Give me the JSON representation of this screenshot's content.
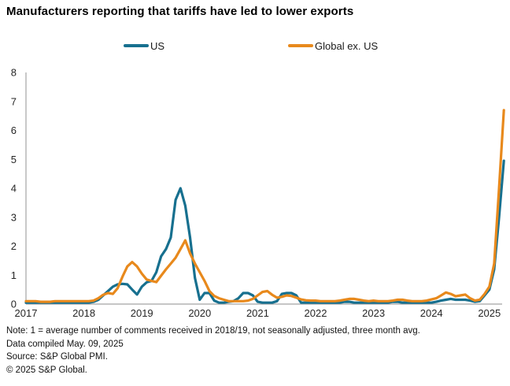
{
  "title": "Manufacturers reporting that tariffs have led to lower exports",
  "legend": [
    {
      "label": "US",
      "color": "#17708F"
    },
    {
      "label": "Global ex. US",
      "color": "#E8891C"
    }
  ],
  "chart_data": {
    "type": "line",
    "title": "Manufacturers reporting that tariffs have led to lower exports",
    "x_axis": "monthly from Jan 2017 to Apr 2025",
    "x_tick_labels": [
      "2017",
      "2018",
      "2019",
      "2020",
      "2021",
      "2022",
      "2023",
      "2024",
      "2025"
    ],
    "y_ticks": [
      0,
      1,
      2,
      3,
      4,
      5,
      6,
      7,
      8
    ],
    "ylim": [
      0,
      8
    ],
    "grid": false,
    "legend_position": "top",
    "axis_color": "#A3A3A3",
    "series": [
      {
        "name": "US",
        "color": "#17708F",
        "values": [
          0.05,
          0.05,
          0.05,
          0.05,
          0.05,
          0.05,
          0.05,
          0.05,
          0.05,
          0.05,
          0.05,
          0.05,
          0.05,
          0.05,
          0.08,
          0.15,
          0.3,
          0.45,
          0.6,
          0.68,
          0.7,
          0.68,
          0.5,
          0.33,
          0.6,
          0.75,
          0.8,
          1.1,
          1.65,
          1.9,
          2.3,
          3.6,
          4.0,
          3.4,
          2.3,
          0.9,
          0.15,
          0.38,
          0.38,
          0.12,
          0.05,
          0.05,
          0.08,
          0.1,
          0.2,
          0.38,
          0.38,
          0.3,
          0.08,
          0.05,
          0.05,
          0.05,
          0.1,
          0.35,
          0.38,
          0.38,
          0.3,
          0.05,
          0.05,
          0.05,
          0.05,
          0.05,
          0.05,
          0.05,
          0.05,
          0.05,
          0.08,
          0.08,
          0.05,
          0.05,
          0.05,
          0.05,
          0.05,
          0.05,
          0.05,
          0.05,
          0.08,
          0.08,
          0.05,
          0.05,
          0.05,
          0.05,
          0.05,
          0.05,
          0.05,
          0.08,
          0.12,
          0.15,
          0.18,
          0.15,
          0.15,
          0.15,
          0.12,
          0.08,
          0.1,
          0.3,
          0.5,
          1.2,
          3.0,
          4.95
        ]
      },
      {
        "name": "Global ex. US",
        "color": "#E8891C",
        "values": [
          0.1,
          0.1,
          0.1,
          0.08,
          0.08,
          0.08,
          0.1,
          0.1,
          0.1,
          0.1,
          0.1,
          0.1,
          0.1,
          0.1,
          0.12,
          0.2,
          0.32,
          0.38,
          0.35,
          0.55,
          0.95,
          1.3,
          1.45,
          1.3,
          1.05,
          0.85,
          0.8,
          0.76,
          0.98,
          1.2,
          1.4,
          1.6,
          1.9,
          2.2,
          1.75,
          1.4,
          1.1,
          0.8,
          0.45,
          0.28,
          0.2,
          0.15,
          0.1,
          0.1,
          0.1,
          0.1,
          0.12,
          0.18,
          0.3,
          0.42,
          0.45,
          0.32,
          0.22,
          0.25,
          0.3,
          0.28,
          0.22,
          0.16,
          0.13,
          0.12,
          0.12,
          0.1,
          0.1,
          0.1,
          0.1,
          0.12,
          0.15,
          0.18,
          0.18,
          0.15,
          0.12,
          0.1,
          0.12,
          0.1,
          0.1,
          0.1,
          0.12,
          0.15,
          0.15,
          0.12,
          0.1,
          0.1,
          0.1,
          0.12,
          0.16,
          0.2,
          0.3,
          0.4,
          0.35,
          0.27,
          0.3,
          0.33,
          0.2,
          0.12,
          0.15,
          0.35,
          0.6,
          1.4,
          4.0,
          6.7
        ]
      }
    ]
  },
  "notes": {
    "note": "Note: 1 = average number of comments received in 2018/19, not seasonally adjusted, three month avg.",
    "compiled": "Data compiled May. 09, 2025",
    "source": "Source: S&P Global PMI.",
    "copyright": "© 2025 S&P Global."
  }
}
